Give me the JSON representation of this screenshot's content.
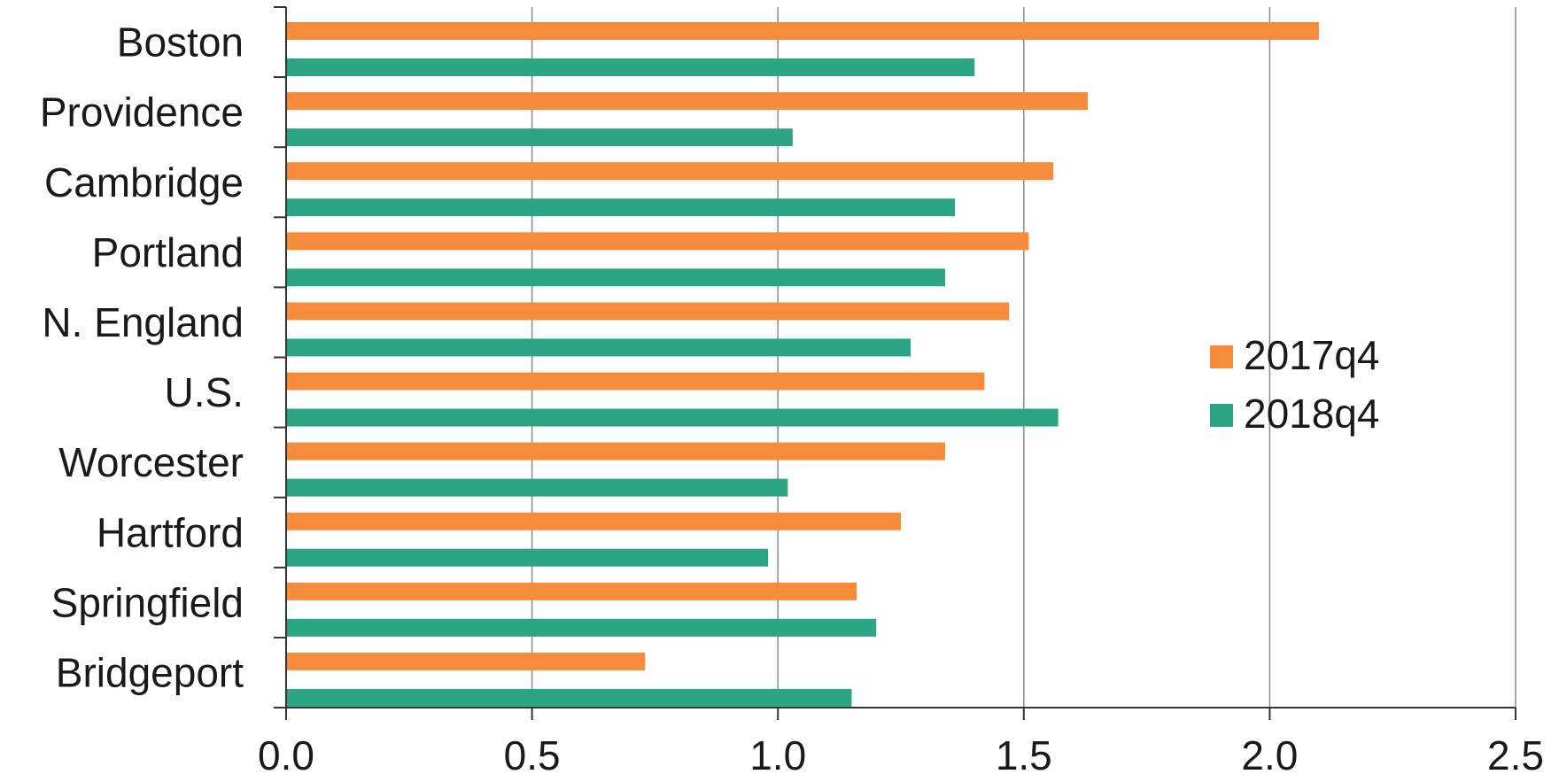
{
  "chart_data": {
    "type": "bar",
    "orientation": "horizontal",
    "categories": [
      "Boston",
      "Providence",
      "Cambridge",
      "Portland",
      "N. England",
      "U.S.",
      "Worcester",
      "Hartford",
      "Springfield",
      "Bridgeport"
    ],
    "series": [
      {
        "name": "2017q4",
        "color": "#f68b3c",
        "values": [
          2.1,
          1.63,
          1.56,
          1.51,
          1.47,
          1.42,
          1.34,
          1.25,
          1.16,
          0.73
        ]
      },
      {
        "name": "2018q4",
        "color": "#2ba584",
        "values": [
          1.4,
          1.03,
          1.36,
          1.34,
          1.27,
          1.57,
          1.02,
          0.98,
          1.2,
          1.15
        ]
      }
    ],
    "xlim": [
      0,
      2.5
    ],
    "x_ticks": [
      "0.0",
      "0.5",
      "1.0",
      "1.5",
      "2.0",
      "2.5"
    ],
    "title": "",
    "xlabel": "",
    "ylabel": "",
    "grid": "vertical",
    "legend_position": "right"
  }
}
